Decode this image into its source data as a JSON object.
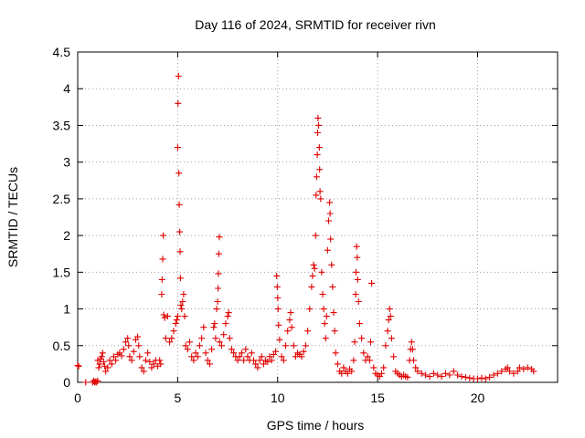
{
  "chart_data": {
    "type": "scatter",
    "title": "Day 116 of 2024, SRMTID for receiver rivn",
    "xlabel": "GPS time / hours",
    "ylabel": "SRMTID / TECUs",
    "xlim": [
      0,
      24
    ],
    "ylim": [
      0,
      4.5
    ],
    "xticks": [
      0,
      5,
      10,
      15,
      20
    ],
    "xtick_labels": [
      "0",
      "5",
      "10",
      "15",
      "20"
    ],
    "yticks": [
      0,
      0.5,
      1,
      1.5,
      2,
      2.5,
      3,
      3.5,
      4,
      4.5
    ],
    "ytick_labels": [
      "0",
      "0.5",
      "1",
      "1.5",
      "2",
      "2.5",
      "3",
      "3.5",
      "4",
      "4.5"
    ],
    "grid": true,
    "marker": "plus",
    "color": "#e00000",
    "series": [
      {
        "name": "SRMTID",
        "points": [
          [
            0.0,
            0.23
          ],
          [
            0.05,
            0.22
          ],
          [
            0.4,
            0.0
          ],
          [
            0.75,
            0.0
          ],
          [
            0.8,
            0.02
          ],
          [
            0.85,
            0.0
          ],
          [
            0.9,
            0.01
          ],
          [
            0.95,
            0.0
          ],
          [
            1.0,
            0.02
          ],
          [
            1.0,
            0.3
          ],
          [
            1.05,
            0.2
          ],
          [
            1.1,
            0.25
          ],
          [
            1.15,
            0.32
          ],
          [
            1.2,
            0.35
          ],
          [
            1.25,
            0.4
          ],
          [
            1.3,
            0.28
          ],
          [
            1.35,
            0.22
          ],
          [
            1.4,
            0.15
          ],
          [
            1.5,
            0.2
          ],
          [
            1.6,
            0.3
          ],
          [
            1.7,
            0.25
          ],
          [
            1.8,
            0.35
          ],
          [
            1.9,
            0.3
          ],
          [
            2.0,
            0.38
          ],
          [
            2.1,
            0.4
          ],
          [
            2.2,
            0.36
          ],
          [
            2.3,
            0.45
          ],
          [
            2.4,
            0.55
          ],
          [
            2.5,
            0.6
          ],
          [
            2.55,
            0.5
          ],
          [
            2.6,
            0.35
          ],
          [
            2.7,
            0.3
          ],
          [
            2.8,
            0.42
          ],
          [
            2.9,
            0.58
          ],
          [
            3.0,
            0.62
          ],
          [
            3.05,
            0.5
          ],
          [
            3.1,
            0.35
          ],
          [
            3.2,
            0.2
          ],
          [
            3.3,
            0.15
          ],
          [
            3.4,
            0.3
          ],
          [
            3.5,
            0.4
          ],
          [
            3.6,
            0.28
          ],
          [
            3.7,
            0.2
          ],
          [
            3.8,
            0.25
          ],
          [
            3.9,
            0.3
          ],
          [
            4.0,
            0.22
          ],
          [
            4.1,
            0.3
          ],
          [
            4.15,
            0.25
          ],
          [
            4.2,
            1.2
          ],
          [
            4.22,
            1.4
          ],
          [
            4.25,
            1.68
          ],
          [
            4.28,
            2.0
          ],
          [
            4.3,
            0.92
          ],
          [
            4.35,
            0.88
          ],
          [
            4.4,
            0.6
          ],
          [
            4.5,
            0.9
          ],
          [
            4.6,
            0.55
          ],
          [
            4.7,
            0.6
          ],
          [
            4.8,
            0.7
          ],
          [
            4.9,
            0.8
          ],
          [
            4.95,
            0.85
          ],
          [
            5.0,
            0.9
          ],
          [
            5.0,
            3.2
          ],
          [
            5.02,
            3.8
          ],
          [
            5.04,
            4.17
          ],
          [
            5.06,
            2.85
          ],
          [
            5.08,
            2.42
          ],
          [
            5.1,
            2.05
          ],
          [
            5.12,
            1.78
          ],
          [
            5.14,
            1.42
          ],
          [
            5.16,
            1.05
          ],
          [
            5.2,
            1.0
          ],
          [
            5.25,
            1.1
          ],
          [
            5.3,
            1.2
          ],
          [
            5.35,
            0.9
          ],
          [
            5.4,
            0.5
          ],
          [
            5.5,
            0.45
          ],
          [
            5.6,
            0.55
          ],
          [
            5.7,
            0.35
          ],
          [
            5.8,
            0.3
          ],
          [
            5.9,
            0.4
          ],
          [
            6.0,
            0.35
          ],
          [
            6.1,
            0.5
          ],
          [
            6.2,
            0.6
          ],
          [
            6.3,
            0.75
          ],
          [
            6.4,
            0.4
          ],
          [
            6.5,
            0.3
          ],
          [
            6.6,
            0.25
          ],
          [
            6.7,
            0.45
          ],
          [
            6.8,
            0.75
          ],
          [
            6.85,
            0.8
          ],
          [
            6.9,
            0.6
          ],
          [
            6.95,
            1.0
          ],
          [
            7.0,
            1.1
          ],
          [
            7.02,
            1.28
          ],
          [
            7.04,
            1.48
          ],
          [
            7.06,
            1.75
          ],
          [
            7.08,
            1.98
          ],
          [
            7.1,
            0.55
          ],
          [
            7.2,
            0.5
          ],
          [
            7.3,
            0.65
          ],
          [
            7.4,
            0.8
          ],
          [
            7.5,
            0.9
          ],
          [
            7.55,
            0.95
          ],
          [
            7.6,
            0.6
          ],
          [
            7.7,
            0.45
          ],
          [
            7.8,
            0.4
          ],
          [
            7.9,
            0.35
          ],
          [
            8.0,
            0.3
          ],
          [
            8.1,
            0.35
          ],
          [
            8.2,
            0.4
          ],
          [
            8.3,
            0.3
          ],
          [
            8.4,
            0.45
          ],
          [
            8.5,
            0.35
          ],
          [
            8.6,
            0.3
          ],
          [
            8.7,
            0.4
          ],
          [
            8.8,
            0.3
          ],
          [
            8.9,
            0.25
          ],
          [
            9.0,
            0.2
          ],
          [
            9.1,
            0.3
          ],
          [
            9.2,
            0.35
          ],
          [
            9.3,
            0.25
          ],
          [
            9.4,
            0.3
          ],
          [
            9.5,
            0.28
          ],
          [
            9.6,
            0.35
          ],
          [
            9.7,
            0.3
          ],
          [
            9.8,
            0.38
          ],
          [
            9.9,
            0.42
          ],
          [
            9.95,
            1.45
          ],
          [
            9.98,
            1.3
          ],
          [
            10.0,
            1.15
          ],
          [
            10.02,
            1.0
          ],
          [
            10.05,
            0.78
          ],
          [
            10.1,
            0.58
          ],
          [
            10.2,
            0.35
          ],
          [
            10.3,
            0.3
          ],
          [
            10.4,
            0.5
          ],
          [
            10.5,
            0.7
          ],
          [
            10.6,
            0.85
          ],
          [
            10.65,
            0.95
          ],
          [
            10.7,
            0.75
          ],
          [
            10.8,
            0.5
          ],
          [
            10.9,
            0.35
          ],
          [
            11.0,
            0.4
          ],
          [
            11.1,
            0.38
          ],
          [
            11.2,
            0.35
          ],
          [
            11.3,
            0.42
          ],
          [
            11.4,
            0.5
          ],
          [
            11.5,
            0.7
          ],
          [
            11.6,
            1.0
          ],
          [
            11.7,
            1.3
          ],
          [
            11.75,
            1.45
          ],
          [
            11.8,
            1.6
          ],
          [
            11.85,
            1.55
          ],
          [
            11.9,
            2.0
          ],
          [
            11.92,
            2.55
          ],
          [
            11.95,
            2.8
          ],
          [
            11.98,
            3.1
          ],
          [
            12.0,
            3.4
          ],
          [
            12.02,
            3.6
          ],
          [
            12.05,
            3.5
          ],
          [
            12.08,
            3.2
          ],
          [
            12.1,
            2.9
          ],
          [
            12.12,
            2.6
          ],
          [
            12.15,
            2.5
          ],
          [
            12.2,
            1.5
          ],
          [
            12.25,
            1.2
          ],
          [
            12.3,
            1.0
          ],
          [
            12.35,
            0.8
          ],
          [
            12.4,
            0.6
          ],
          [
            12.45,
            0.9
          ],
          [
            12.5,
            1.8
          ],
          [
            12.55,
            2.2
          ],
          [
            12.6,
            2.45
          ],
          [
            12.62,
            2.3
          ],
          [
            12.65,
            1.95
          ],
          [
            12.7,
            1.6
          ],
          [
            12.75,
            1.3
          ],
          [
            12.8,
            0.95
          ],
          [
            12.85,
            0.7
          ],
          [
            12.9,
            0.4
          ],
          [
            13.0,
            0.25
          ],
          [
            13.1,
            0.15
          ],
          [
            13.2,
            0.12
          ],
          [
            13.3,
            0.2
          ],
          [
            13.4,
            0.15
          ],
          [
            13.5,
            0.12
          ],
          [
            13.6,
            0.18
          ],
          [
            13.7,
            0.15
          ],
          [
            13.8,
            0.3
          ],
          [
            13.85,
            0.55
          ],
          [
            13.9,
            1.2
          ],
          [
            13.92,
            1.5
          ],
          [
            13.95,
            1.85
          ],
          [
            13.98,
            1.7
          ],
          [
            14.0,
            1.4
          ],
          [
            14.05,
            1.1
          ],
          [
            14.1,
            0.8
          ],
          [
            14.2,
            0.6
          ],
          [
            14.3,
            0.4
          ],
          [
            14.4,
            0.3
          ],
          [
            14.5,
            0.35
          ],
          [
            14.6,
            0.3
          ],
          [
            14.65,
            0.55
          ],
          [
            14.7,
            1.35
          ],
          [
            14.8,
            0.2
          ],
          [
            14.9,
            0.12
          ],
          [
            15.0,
            0.1
          ],
          [
            15.1,
            0.08
          ],
          [
            15.2,
            0.12
          ],
          [
            15.3,
            0.2
          ],
          [
            15.4,
            0.5
          ],
          [
            15.5,
            0.7
          ],
          [
            15.55,
            0.85
          ],
          [
            15.6,
            1.0
          ],
          [
            15.65,
            0.9
          ],
          [
            15.7,
            0.6
          ],
          [
            15.8,
            0.35
          ],
          [
            15.9,
            0.15
          ],
          [
            16.0,
            0.12
          ],
          [
            16.1,
            0.1
          ],
          [
            16.2,
            0.08
          ],
          [
            16.3,
            0.1
          ],
          [
            16.4,
            0.08
          ],
          [
            16.5,
            0.07
          ],
          [
            16.6,
            0.3
          ],
          [
            16.65,
            0.45
          ],
          [
            16.7,
            0.55
          ],
          [
            16.75,
            0.45
          ],
          [
            16.8,
            0.3
          ],
          [
            16.9,
            0.2
          ],
          [
            17.0,
            0.15
          ],
          [
            17.2,
            0.12
          ],
          [
            17.4,
            0.1
          ],
          [
            17.6,
            0.08
          ],
          [
            17.8,
            0.12
          ],
          [
            18.0,
            0.1
          ],
          [
            18.2,
            0.08
          ],
          [
            18.4,
            0.12
          ],
          [
            18.6,
            0.1
          ],
          [
            18.8,
            0.15
          ],
          [
            19.0,
            0.1
          ],
          [
            19.2,
            0.08
          ],
          [
            19.4,
            0.07
          ],
          [
            19.6,
            0.06
          ],
          [
            19.8,
            0.05
          ],
          [
            20.0,
            0.05
          ],
          [
            20.2,
            0.06
          ],
          [
            20.4,
            0.05
          ],
          [
            20.6,
            0.07
          ],
          [
            20.8,
            0.1
          ],
          [
            21.0,
            0.12
          ],
          [
            21.2,
            0.15
          ],
          [
            21.4,
            0.18
          ],
          [
            21.5,
            0.2
          ],
          [
            21.6,
            0.15
          ],
          [
            21.8,
            0.12
          ],
          [
            22.0,
            0.15
          ],
          [
            22.1,
            0.2
          ],
          [
            22.3,
            0.18
          ],
          [
            22.5,
            0.2
          ],
          [
            22.7,
            0.18
          ],
          [
            22.8,
            0.15
          ]
        ]
      }
    ]
  }
}
